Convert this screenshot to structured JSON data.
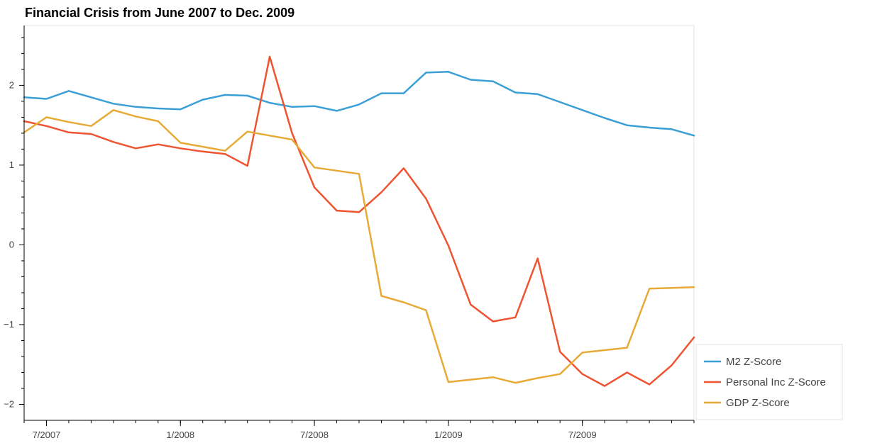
{
  "chart_data": {
    "type": "line",
    "title": "Financial Crisis from June 2007 to Dec. 2009",
    "xlabel": "",
    "ylabel": "",
    "x": [
      "2007-06",
      "2007-07",
      "2007-08",
      "2007-09",
      "2007-10",
      "2007-11",
      "2007-12",
      "2008-01",
      "2008-02",
      "2008-03",
      "2008-04",
      "2008-05",
      "2008-06",
      "2008-07",
      "2008-08",
      "2008-09",
      "2008-10",
      "2008-11",
      "2008-12",
      "2009-01",
      "2009-02",
      "2009-03",
      "2009-04",
      "2009-05",
      "2009-06",
      "2009-07",
      "2009-08",
      "2009-09",
      "2009-10",
      "2009-11",
      "2009-12"
    ],
    "xlim": [
      "2007-06",
      "2009-12"
    ],
    "ylim": [
      -2.2,
      2.75
    ],
    "x_ticks": [
      {
        "value": "2007-07",
        "label": "7/2007"
      },
      {
        "value": "2008-01",
        "label": "1/2008"
      },
      {
        "value": "2008-07",
        "label": "7/2008"
      },
      {
        "value": "2009-01",
        "label": "1/2009"
      },
      {
        "value": "2009-07",
        "label": "7/2009"
      }
    ],
    "y_ticks": [
      {
        "value": 2,
        "label": "2"
      },
      {
        "value": 1,
        "label": "1"
      },
      {
        "value": 0,
        "label": "0"
      },
      {
        "value": -1,
        "label": "−1"
      },
      {
        "value": -2,
        "label": "−2"
      }
    ],
    "grid": false,
    "legend_position": "bottom-right",
    "series": [
      {
        "name": "M2 Z-Score",
        "color": "#3a9fd6",
        "values": [
          1.85,
          1.83,
          1.93,
          1.85,
          1.77,
          1.73,
          1.71,
          1.7,
          1.82,
          1.88,
          1.87,
          1.78,
          1.73,
          1.74,
          1.68,
          1.76,
          1.9,
          1.9,
          2.16,
          2.17,
          2.07,
          2.05,
          1.91,
          1.89,
          1.79,
          1.69,
          1.59,
          1.5,
          1.47,
          1.45,
          1.37
        ]
      },
      {
        "name": "Personal Inc Z-Score",
        "color": "#ee5332",
        "values": [
          1.55,
          1.49,
          1.41,
          1.39,
          1.29,
          1.21,
          1.26,
          1.21,
          1.17,
          1.14,
          0.99,
          2.36,
          1.4,
          0.72,
          0.43,
          0.41,
          0.66,
          0.96,
          0.58,
          -0.01,
          -0.75,
          -0.96,
          -0.91,
          -0.17,
          -1.34,
          -1.62,
          -1.77,
          -1.6,
          -1.75,
          -1.51,
          -1.16
        ]
      },
      {
        "name": "GDP Z-Score",
        "color": "#e8aa37",
        "values": [
          1.41,
          1.6,
          1.54,
          1.49,
          1.69,
          1.61,
          1.55,
          1.28,
          1.23,
          1.18,
          1.42,
          1.37,
          1.32,
          0.97,
          0.93,
          0.89,
          -0.64,
          -0.72,
          -0.82,
          -1.72,
          -1.69,
          -1.66,
          -1.73,
          -1.67,
          -1.62,
          -1.35,
          -1.32,
          -1.29,
          -0.55,
          -0.54,
          -0.53
        ]
      }
    ]
  }
}
